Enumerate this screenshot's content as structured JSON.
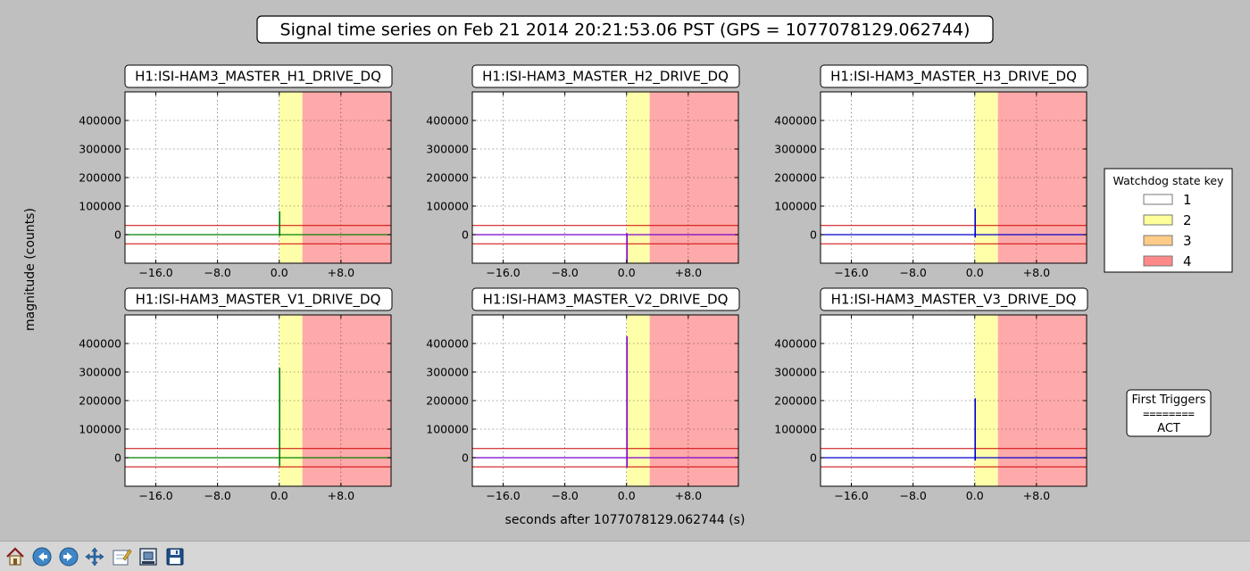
{
  "figure": {
    "suptitle": "Signal time series on Feb 21 2014 20:21:53.06 PST (GPS = 1077078129.062744)",
    "ylabel": "magnitude (counts)",
    "xlabel": "seconds after 1077078129.062744 (s)"
  },
  "chart_data": [
    {
      "type": "line",
      "title": "H1:ISI-HAM3_MASTER_H1_DRIVE_DQ",
      "color": "#008000",
      "xlim": [
        -20,
        14.5
      ],
      "ylim": [
        -100000,
        500000
      ],
      "xticks": [
        -16,
        -8,
        0,
        8
      ],
      "xtick_labels": [
        "−16.0",
        "−8.0",
        "0.0",
        "+8.0"
      ],
      "yticks": [
        0,
        100000,
        200000,
        300000,
        400000
      ],
      "ytick_labels": [
        "0",
        "100000",
        "200000",
        "300000",
        "400000"
      ],
      "grid": true,
      "thresholds": [
        32000,
        -32000
      ],
      "state_regions": [
        {
          "state": 2,
          "x0": 0,
          "x1": 3
        },
        {
          "state": 4,
          "x0": 3,
          "x1": 14.5
        }
      ],
      "spike": {
        "x": 0.05,
        "ymin": -5000,
        "ymax": 82000
      }
    },
    {
      "type": "line",
      "title": "H1:ISI-HAM3_MASTER_H2_DRIVE_DQ",
      "color": "#7b00cc",
      "xlim": [
        -20,
        14.5
      ],
      "ylim": [
        -100000,
        500000
      ],
      "xticks": [
        -16,
        -8,
        0,
        8
      ],
      "xtick_labels": [
        "−16.0",
        "−8.0",
        "0.0",
        "+8.0"
      ],
      "yticks": [
        0,
        100000,
        200000,
        300000,
        400000
      ],
      "ytick_labels": [
        "0",
        "100000",
        "200000",
        "300000",
        "400000"
      ],
      "grid": true,
      "thresholds": [
        32000,
        -32000
      ],
      "state_regions": [
        {
          "state": 2,
          "x0": 0,
          "x1": 3
        },
        {
          "state": 4,
          "x0": 3,
          "x1": 14.5
        }
      ],
      "spike": {
        "x": 0.05,
        "ymin": -100000,
        "ymax": 5000
      }
    },
    {
      "type": "line",
      "title": "H1:ISI-HAM3_MASTER_H3_DRIVE_DQ",
      "color": "#0000cc",
      "xlim": [
        -20,
        14.5
      ],
      "ylim": [
        -100000,
        500000
      ],
      "xticks": [
        -16,
        -8,
        0,
        8
      ],
      "xtick_labels": [
        "−16.0",
        "−8.0",
        "0.0",
        "+8.0"
      ],
      "yticks": [
        0,
        100000,
        200000,
        300000,
        400000
      ],
      "ytick_labels": [
        "0",
        "100000",
        "200000",
        "300000",
        "400000"
      ],
      "grid": true,
      "thresholds": [
        32000,
        -32000
      ],
      "state_regions": [
        {
          "state": 2,
          "x0": 0,
          "x1": 3
        },
        {
          "state": 4,
          "x0": 3,
          "x1": 14.5
        }
      ],
      "spike": {
        "x": 0.05,
        "ymin": -10000,
        "ymax": 92000
      }
    },
    {
      "type": "line",
      "title": "H1:ISI-HAM3_MASTER_V1_DRIVE_DQ",
      "color": "#008000",
      "xlim": [
        -20,
        14.5
      ],
      "ylim": [
        -100000,
        500000
      ],
      "xticks": [
        -16,
        -8,
        0,
        8
      ],
      "xtick_labels": [
        "−16.0",
        "−8.0",
        "0.0",
        "+8.0"
      ],
      "yticks": [
        0,
        100000,
        200000,
        300000,
        400000
      ],
      "ytick_labels": [
        "0",
        "100000",
        "200000",
        "300000",
        "400000"
      ],
      "grid": true,
      "thresholds": [
        32000,
        -32000
      ],
      "state_regions": [
        {
          "state": 2,
          "x0": 0,
          "x1": 3
        },
        {
          "state": 4,
          "x0": 3,
          "x1": 14.5
        }
      ],
      "spike": {
        "x": 0.05,
        "ymin": -30000,
        "ymax": 315000
      }
    },
    {
      "type": "line",
      "title": "H1:ISI-HAM3_MASTER_V2_DRIVE_DQ",
      "color": "#7b00cc",
      "xlim": [
        -20,
        14.5
      ],
      "ylim": [
        -100000,
        500000
      ],
      "xticks": [
        -16,
        -8,
        0,
        8
      ],
      "xtick_labels": [
        "−16.0",
        "−8.0",
        "0.0",
        "+8.0"
      ],
      "yticks": [
        0,
        100000,
        200000,
        300000,
        400000
      ],
      "ytick_labels": [
        "0",
        "100000",
        "200000",
        "300000",
        "400000"
      ],
      "grid": true,
      "thresholds": [
        32000,
        -32000
      ],
      "state_regions": [
        {
          "state": 2,
          "x0": 0,
          "x1": 3
        },
        {
          "state": 4,
          "x0": 3,
          "x1": 14.5
        }
      ],
      "spike": {
        "x": 0.05,
        "ymin": -35000,
        "ymax": 425000
      }
    },
    {
      "type": "line",
      "title": "H1:ISI-HAM3_MASTER_V3_DRIVE_DQ",
      "color": "#0000cc",
      "xlim": [
        -20,
        14.5
      ],
      "ylim": [
        -100000,
        500000
      ],
      "xticks": [
        -16,
        -8,
        0,
        8
      ],
      "xtick_labels": [
        "−16.0",
        "−8.0",
        "0.0",
        "+8.0"
      ],
      "yticks": [
        0,
        100000,
        200000,
        300000,
        400000
      ],
      "ytick_labels": [
        "0",
        "100000",
        "200000",
        "300000",
        "400000"
      ],
      "grid": true,
      "thresholds": [
        32000,
        -32000
      ],
      "state_regions": [
        {
          "state": 2,
          "x0": 0,
          "x1": 3
        },
        {
          "state": 4,
          "x0": 3,
          "x1": 14.5
        }
      ],
      "spike": {
        "x": 0.05,
        "ymin": -10000,
        "ymax": 208000
      }
    }
  ],
  "legend": {
    "title": "Watchdog state key",
    "placement": "right",
    "items": [
      {
        "label": "1",
        "color": "#ffffff"
      },
      {
        "label": "2",
        "color": "#ffff99"
      },
      {
        "label": "3",
        "color": "#ffcc88"
      },
      {
        "label": "4",
        "color": "#ff8888"
      }
    ]
  },
  "triggers": {
    "title": "First Triggers",
    "separator": "========",
    "value": "ACT"
  },
  "colors": {
    "background": "#bfbfbf",
    "threshold": "#cc0000",
    "state2_fill": "#ffffaa",
    "state4_fill": "#ffaaaa"
  },
  "toolbar": {
    "buttons": [
      {
        "name": "home-button",
        "icon": "home-icon"
      },
      {
        "name": "back-button",
        "icon": "arrow-left-icon"
      },
      {
        "name": "forward-button",
        "icon": "arrow-right-icon"
      },
      {
        "name": "pan-button",
        "icon": "move-icon"
      },
      {
        "name": "subplots-button",
        "icon": "edit-icon"
      },
      {
        "name": "zoom-button",
        "icon": "zoom-rect-icon"
      },
      {
        "name": "save-button",
        "icon": "floppy-disk-icon"
      }
    ]
  }
}
